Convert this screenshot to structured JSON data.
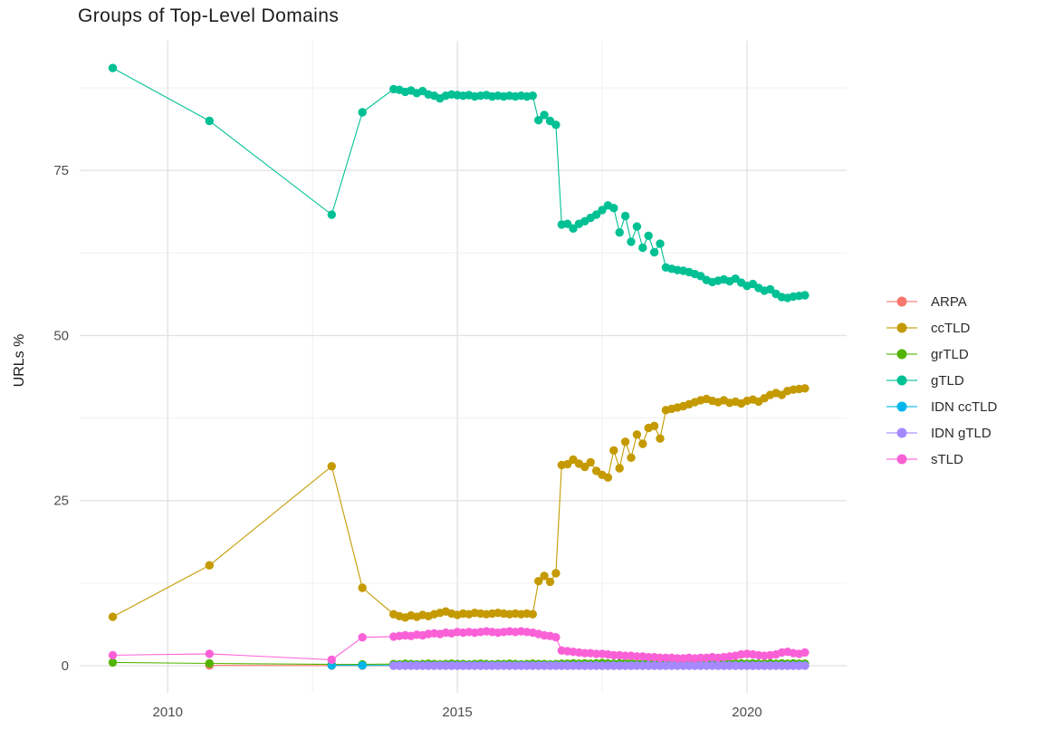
{
  "chart_data": {
    "type": "scatter",
    "title": "Groups of Top-Level Domains",
    "xlabel": "",
    "ylabel": "URLs %",
    "legend_position": "right",
    "grid": true,
    "xlim": [
      2008.48,
      2021.72
    ],
    "ylim": [
      -4.11,
      94.63
    ],
    "x_ticks": [
      2010,
      2015,
      2020
    ],
    "x_tick_labels": [
      "2010",
      "2015",
      "2020"
    ],
    "x_minor_ticks": [
      2012.5,
      2017.5
    ],
    "y_ticks": [
      0,
      25,
      50,
      75
    ],
    "y_tick_labels": [
      "0",
      "25",
      "50",
      "75"
    ],
    "y_minor_ticks": [
      12.5,
      37.5,
      62.5,
      87.5
    ],
    "colors": {
      "grid_major": "#e3e3e3",
      "grid_minor": "#f0f0f0",
      "axis_text": "#4d4d4d",
      "title_text": "#1c1c1c",
      "background": "#ffffff"
    },
    "x": [
      2009.05,
      2010.72,
      2012.83,
      2013.36,
      2013.9,
      2014.0,
      2014.1,
      2014.2,
      2014.3,
      2014.4,
      2014.5,
      2014.6,
      2014.7,
      2014.8,
      2014.9,
      2015.0,
      2015.1,
      2015.2,
      2015.3,
      2015.4,
      2015.5,
      2015.6,
      2015.7,
      2015.8,
      2015.9,
      2016.0,
      2016.1,
      2016.2,
      2016.3,
      2016.4,
      2016.5,
      2016.6,
      2016.7,
      2016.8,
      2016.9,
      2017.0,
      2017.1,
      2017.2,
      2017.3,
      2017.4,
      2017.5,
      2017.6,
      2017.7,
      2017.8,
      2017.9,
      2018.0,
      2018.1,
      2018.2,
      2018.3,
      2018.4,
      2018.5,
      2018.6,
      2018.7,
      2018.8,
      2018.9,
      2019.0,
      2019.1,
      2019.2,
      2019.3,
      2019.4,
      2019.5,
      2019.6,
      2019.7,
      2019.8,
      2019.9,
      2020.0,
      2020.1,
      2020.2,
      2020.3,
      2020.4,
      2020.5,
      2020.6,
      2020.7,
      2020.8,
      2020.9,
      2021.0
    ],
    "series": [
      {
        "name": "ARPA",
        "color": "#F8766D",
        "values": [
          null,
          0.05,
          0.02,
          0.02,
          0.02,
          0.02,
          0.02,
          0.02,
          0.02,
          0.02,
          0.02,
          0.02,
          0.02,
          0.02,
          0.02,
          0.02,
          0.02,
          0.02,
          0.02,
          0.02,
          0.02,
          0.02,
          0.02,
          0.02,
          0.02,
          0.02,
          0.02,
          0.02,
          0.02,
          0.02,
          0.02,
          0.02,
          0.02,
          0.02,
          0.02,
          0.02,
          0.02,
          0.02,
          0.02,
          0.02,
          0.02,
          0.02,
          0.02,
          0.02,
          0.02,
          0.02,
          0.02,
          0.02,
          0.02,
          0.02,
          0.02,
          0.02,
          0.02,
          0.02,
          0.02,
          0.02,
          0.02,
          0.02,
          0.02,
          0.02,
          0.02,
          0.02,
          0.02,
          0.02,
          0.02,
          0.02,
          0.02,
          0.02,
          0.02,
          0.02,
          0.02,
          0.02,
          0.02,
          0.02,
          0.02,
          0.02
        ]
      },
      {
        "name": "ccTLD",
        "color": "#C49A00",
        "values": [
          7.4,
          15.2,
          30.2,
          11.8,
          7.8,
          7.5,
          7.3,
          7.6,
          7.4,
          7.7,
          7.5,
          7.8,
          8.0,
          8.2,
          7.9,
          7.7,
          7.9,
          7.8,
          8.0,
          7.9,
          7.8,
          7.9,
          8.0,
          7.9,
          7.8,
          7.9,
          7.8,
          7.9,
          7.8,
          12.8,
          13.6,
          12.7,
          14.0,
          30.4,
          30.5,
          31.2,
          30.6,
          30.1,
          30.8,
          29.5,
          28.9,
          28.5,
          32.6,
          29.9,
          33.9,
          31.5,
          35.0,
          33.6,
          36.0,
          36.3,
          34.4,
          38.7,
          38.9,
          39.1,
          39.3,
          39.6,
          39.9,
          40.2,
          40.4,
          40.1,
          39.9,
          40.2,
          39.8,
          40.0,
          39.7,
          40.1,
          40.3,
          40.0,
          40.5,
          41.0,
          41.3,
          41.0,
          41.6,
          41.8,
          41.9,
          42.0
        ]
      },
      {
        "name": "grTLD",
        "color": "#53B400",
        "values": [
          0.5,
          0.35,
          0.2,
          0.2,
          0.25,
          0.2,
          0.3,
          0.25,
          0.2,
          0.25,
          0.3,
          0.25,
          0.2,
          0.25,
          0.3,
          0.25,
          0.25,
          0.2,
          0.25,
          0.3,
          0.25,
          0.2,
          0.25,
          0.25,
          0.3,
          0.25,
          0.2,
          0.25,
          0.3,
          0.25,
          0.25,
          0.2,
          0.25,
          0.3,
          0.3,
          0.35,
          0.3,
          0.35,
          0.3,
          0.35,
          0.4,
          0.35,
          0.3,
          0.35,
          0.4,
          0.35,
          0.35,
          0.3,
          0.35,
          0.3,
          0.35,
          0.3,
          0.3,
          0.35,
          0.3,
          0.35,
          0.3,
          0.35,
          0.3,
          0.3,
          0.35,
          0.3,
          0.35,
          0.3,
          0.35,
          0.3,
          0.35,
          0.3,
          0.3,
          0.35,
          0.3,
          0.35,
          0.3,
          0.35,
          0.3,
          0.3
        ]
      },
      {
        "name": "gTLD",
        "color": "#00C094",
        "values": [
          90.5,
          82.5,
          68.3,
          83.8,
          87.3,
          87.2,
          86.9,
          87.1,
          86.7,
          87.0,
          86.5,
          86.3,
          85.9,
          86.3,
          86.5,
          86.4,
          86.3,
          86.4,
          86.2,
          86.3,
          86.4,
          86.2,
          86.3,
          86.2,
          86.3,
          86.2,
          86.3,
          86.2,
          86.3,
          82.6,
          83.4,
          82.5,
          81.9,
          66.8,
          66.9,
          66.2,
          66.9,
          67.3,
          67.8,
          68.3,
          69.0,
          69.7,
          69.3,
          65.6,
          68.1,
          64.2,
          66.5,
          63.3,
          65.1,
          62.6,
          63.9,
          60.3,
          60.1,
          59.9,
          59.8,
          59.6,
          59.3,
          59.0,
          58.4,
          58.1,
          58.3,
          58.5,
          58.2,
          58.6,
          58.0,
          57.5,
          57.8,
          57.2,
          56.8,
          57.0,
          56.3,
          55.8,
          55.7,
          55.9,
          56.0,
          56.1
        ]
      },
      {
        "name": "IDN ccTLD",
        "color": "#00B6EB",
        "values": [
          null,
          null,
          0.05,
          0.05,
          0.05,
          0.05,
          0.05,
          0.05,
          0.05,
          0.05,
          0.05,
          0.05,
          0.05,
          0.05,
          0.05,
          0.05,
          0.05,
          0.05,
          0.05,
          0.05,
          0.05,
          0.05,
          0.05,
          0.05,
          0.05,
          0.05,
          0.05,
          0.05,
          0.05,
          0.05,
          0.05,
          0.05,
          0.05,
          0.05,
          0.05,
          0.05,
          0.05,
          0.05,
          0.05,
          0.05,
          0.05,
          0.05,
          0.05,
          0.05,
          0.05,
          0.05,
          0.05,
          0.05,
          0.05,
          0.05,
          0.05,
          0.05,
          0.05,
          0.05,
          0.05,
          0.05,
          0.05,
          0.05,
          0.05,
          0.05,
          0.05,
          0.05,
          0.05,
          0.05,
          0.05,
          0.05,
          0.05,
          0.05,
          0.05,
          0.05,
          0.05,
          0.05,
          0.05,
          0.05,
          0.05,
          0.05
        ]
      },
      {
        "name": "IDN gTLD",
        "color": "#A58AFF",
        "values": [
          null,
          null,
          null,
          null,
          0,
          0,
          0,
          0,
          0,
          0,
          0,
          0,
          0,
          0,
          0,
          0,
          0,
          0,
          0,
          0,
          0,
          0,
          0,
          0,
          0,
          0,
          0,
          0,
          0,
          0,
          0,
          0,
          0,
          0,
          0,
          0,
          0,
          0,
          0,
          0,
          0,
          0,
          0,
          0,
          0,
          0,
          0,
          0,
          0,
          0,
          0,
          0,
          0,
          0,
          0,
          0,
          0,
          0,
          0,
          0,
          0,
          0,
          0,
          0,
          0,
          0,
          0,
          0,
          0,
          0,
          0,
          0,
          0,
          0,
          0,
          0
        ]
      },
      {
        "name": "sTLD",
        "color": "#FB61D7",
        "values": [
          1.6,
          1.8,
          0.9,
          4.3,
          4.4,
          4.5,
          4.6,
          4.5,
          4.7,
          4.6,
          4.8,
          4.9,
          4.8,
          5.0,
          4.9,
          5.1,
          5.0,
          5.1,
          5.0,
          5.1,
          5.2,
          5.1,
          5.0,
          5.1,
          5.2,
          5.1,
          5.2,
          5.1,
          5.0,
          4.8,
          4.6,
          4.5,
          4.3,
          2.3,
          2.2,
          2.1,
          2.0,
          1.9,
          1.9,
          1.8,
          1.8,
          1.7,
          1.6,
          1.6,
          1.5,
          1.5,
          1.4,
          1.4,
          1.3,
          1.3,
          1.2,
          1.2,
          1.2,
          1.1,
          1.1,
          1.2,
          1.1,
          1.2,
          1.2,
          1.3,
          1.2,
          1.3,
          1.4,
          1.5,
          1.7,
          1.8,
          1.7,
          1.6,
          1.5,
          1.6,
          1.7,
          2.0,
          2.1,
          1.9,
          1.8,
          2.0
        ]
      }
    ]
  }
}
